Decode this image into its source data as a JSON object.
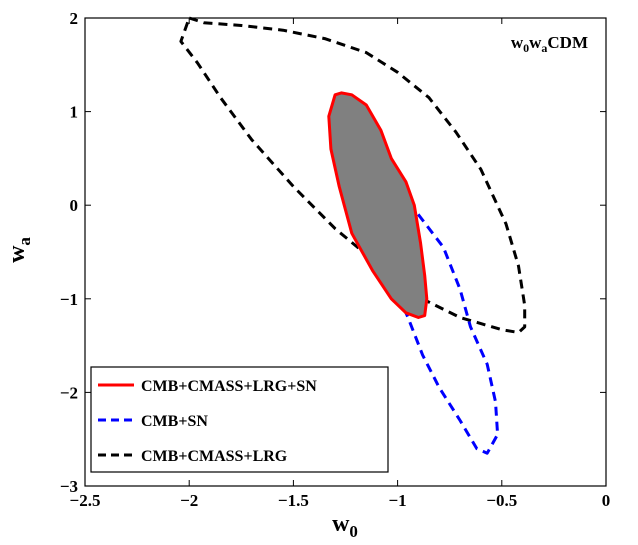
{
  "chart_data": {
    "type": "contour",
    "xlabel": "w",
    "xlabel_sub": "0",
    "ylabel": "w",
    "ylabel_sub": "a",
    "xlim": [
      -2.5,
      0
    ],
    "ylim": [
      -3,
      2
    ],
    "xticks": [
      -2.5,
      -2,
      -1.5,
      -1,
      -0.5,
      0
    ],
    "xtick_labels": [
      "−2.5",
      "−2",
      "−1.5",
      "−1",
      "−0.5",
      "0"
    ],
    "yticks": [
      -3,
      -2,
      -1,
      0,
      1,
      2
    ],
    "ytick_labels": [
      "−3",
      "−2",
      "−1",
      "0",
      "1",
      "2"
    ],
    "annotation": {
      "parts": [
        {
          "text": "w",
          "sub": false
        },
        {
          "text": "0",
          "sub": true
        },
        {
          "text": "w",
          "sub": false
        },
        {
          "text": "a",
          "sub": true
        },
        {
          "text": "CDM",
          "sub": false
        }
      ]
    },
    "legend": {
      "position": "bottom-left",
      "entries": [
        {
          "label": "CMB+CMASS+LRG+SN",
          "color": "#ff0000",
          "style": "solid"
        },
        {
          "label": "CMB+SN",
          "color": "#0000ff",
          "style": "dashed"
        },
        {
          "label": "CMB+CMASS+LRG",
          "color": "#000000",
          "style": "dashed"
        }
      ]
    },
    "series": [
      {
        "name": "CMB+CMASS+LRG",
        "color": "#000000",
        "style": "dashed",
        "fill": null,
        "points": [
          [
            -2.0,
            2.0
          ],
          [
            -1.93,
            1.95
          ],
          [
            -1.75,
            1.92
          ],
          [
            -1.55,
            1.87
          ],
          [
            -1.35,
            1.78
          ],
          [
            -1.15,
            1.63
          ],
          [
            -1.0,
            1.42
          ],
          [
            -0.85,
            1.15
          ],
          [
            -0.72,
            0.78
          ],
          [
            -0.6,
            0.38
          ],
          [
            -0.48,
            -0.2
          ],
          [
            -0.42,
            -0.65
          ],
          [
            -0.39,
            -1.07
          ],
          [
            -0.39,
            -1.3
          ],
          [
            -0.42,
            -1.36
          ],
          [
            -0.5,
            -1.33
          ],
          [
            -0.7,
            -1.2
          ],
          [
            -0.9,
            -0.98
          ],
          [
            -1.1,
            -0.62
          ],
          [
            -1.3,
            -0.25
          ],
          [
            -1.5,
            0.2
          ],
          [
            -1.7,
            0.7
          ],
          [
            -1.85,
            1.15
          ],
          [
            -1.96,
            1.52
          ],
          [
            -2.04,
            1.75
          ]
        ]
      },
      {
        "name": "CMB+SN",
        "color": "#0000ff",
        "style": "dashed",
        "fill": null,
        "points": [
          [
            -1.14,
            0.48
          ],
          [
            -1.08,
            0.42
          ],
          [
            -1.0,
            0.15
          ],
          [
            -0.9,
            -0.1
          ],
          [
            -0.78,
            -0.45
          ],
          [
            -0.7,
            -0.9
          ],
          [
            -0.65,
            -1.3
          ],
          [
            -0.57,
            -1.7
          ],
          [
            -0.53,
            -2.1
          ],
          [
            -0.52,
            -2.45
          ],
          [
            -0.57,
            -2.65
          ],
          [
            -0.62,
            -2.6
          ],
          [
            -0.7,
            -2.3
          ],
          [
            -0.8,
            -1.95
          ],
          [
            -0.88,
            -1.6
          ],
          [
            -0.95,
            -1.2
          ],
          [
            -1.02,
            -0.85
          ],
          [
            -1.08,
            -0.6
          ],
          [
            -1.12,
            -0.3
          ],
          [
            -1.15,
            0.0
          ],
          [
            -1.16,
            0.3
          ]
        ]
      },
      {
        "name": "CMB+CMASS+LRG+SN",
        "color": "#ff0000",
        "style": "solid",
        "fill": "#808080",
        "points": [
          [
            -1.3,
            1.18
          ],
          [
            -1.27,
            1.2
          ],
          [
            -1.22,
            1.18
          ],
          [
            -1.15,
            1.07
          ],
          [
            -1.08,
            0.8
          ],
          [
            -1.03,
            0.5
          ],
          [
            -0.96,
            0.25
          ],
          [
            -0.92,
            0.0
          ],
          [
            -0.89,
            -0.4
          ],
          [
            -0.87,
            -0.75
          ],
          [
            -0.86,
            -1.0
          ],
          [
            -0.87,
            -1.18
          ],
          [
            -0.9,
            -1.2
          ],
          [
            -0.96,
            -1.15
          ],
          [
            -1.03,
            -1.0
          ],
          [
            -1.12,
            -0.7
          ],
          [
            -1.22,
            -0.3
          ],
          [
            -1.28,
            0.2
          ],
          [
            -1.32,
            0.6
          ],
          [
            -1.33,
            0.95
          ]
        ]
      }
    ]
  }
}
